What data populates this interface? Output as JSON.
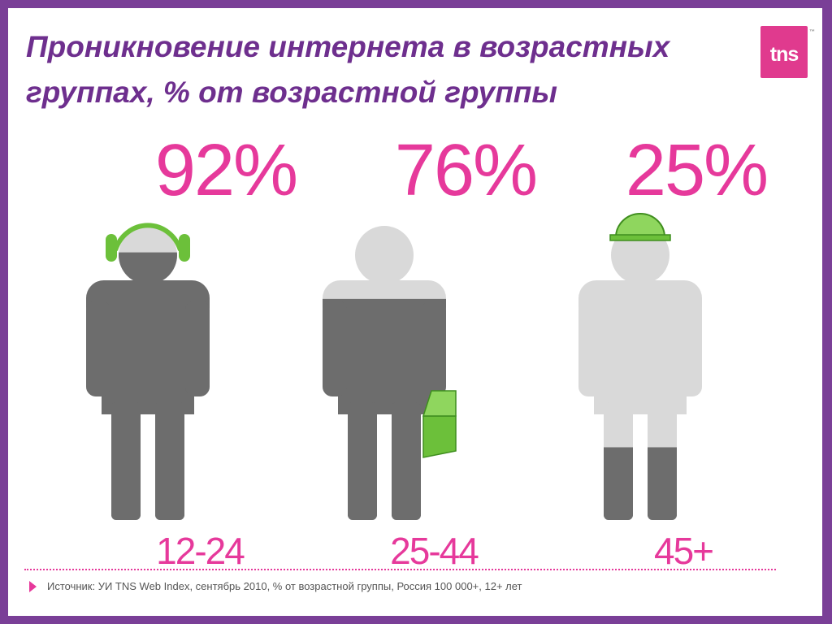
{
  "title": "Проникновение интернета в возрастных группах, % от возрастной группы",
  "logo": {
    "text": "tns",
    "trademark": "™",
    "color": "#e03a8e"
  },
  "chart_data": {
    "type": "bar",
    "categories": [
      "12-24",
      "25-44",
      "45+"
    ],
    "values": [
      92,
      76,
      25
    ],
    "value_labels": [
      "92%",
      "76%",
      "25%"
    ],
    "ylim": [
      0,
      100
    ],
    "title": "Проникновение интернета в возрастных группах, % от возрастной группы",
    "xlabel": "",
    "ylabel": "",
    "accessories": [
      "headphones",
      "briefcase",
      "hard-hat"
    ]
  },
  "colors": {
    "filled": "#6d6d6d",
    "empty": "#d9d9d9",
    "accent_green": "#6cc03a",
    "label_pink": "#e6399b",
    "title_purple": "#6e2f8e",
    "frame_purple": "#7a3f97"
  },
  "source": "Источник: УИ TNS Web Index, сентябрь 2010, % от возрастной группы, Россия 100 000+, 12+ лет"
}
